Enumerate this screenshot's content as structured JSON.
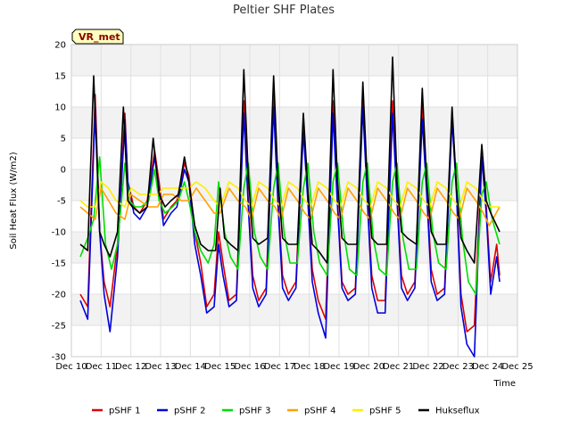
{
  "chart_data": {
    "type": "line",
    "title": "Peltier SHF Plates",
    "xlabel": "Time",
    "ylabel": "Soil Heat Flux (W/m2)",
    "tag": "VR_met",
    "xlim": [
      10,
      25
    ],
    "ylim": [
      -30,
      20
    ],
    "x_ticks": [
      {
        "v": 10,
        "label": "Dec 10"
      },
      {
        "v": 11,
        "label": "Dec 11"
      },
      {
        "v": 12,
        "label": "Dec 12"
      },
      {
        "v": 13,
        "label": "Dec 13"
      },
      {
        "v": 14,
        "label": "Dec 14"
      },
      {
        "v": 15,
        "label": "Dec 15"
      },
      {
        "v": 16,
        "label": "Dec 16"
      },
      {
        "v": 17,
        "label": "Dec 17"
      },
      {
        "v": 18,
        "label": "Dec 18"
      },
      {
        "v": 19,
        "label": "Dec 19"
      },
      {
        "v": 20,
        "label": "Dec 20"
      },
      {
        "v": 21,
        "label": "Dec 21"
      },
      {
        "v": 22,
        "label": "Dec 22"
      },
      {
        "v": 23,
        "label": "Dec 23"
      },
      {
        "v": 24,
        "label": "Dec 24"
      },
      {
        "v": 25,
        "label": "Dec 25"
      }
    ],
    "y_ticks": [
      {
        "v": 20,
        "label": "20"
      },
      {
        "v": 15,
        "label": "15"
      },
      {
        "v": 10,
        "label": "10"
      },
      {
        "v": 5,
        "label": "5"
      },
      {
        "v": 0,
        "label": "0"
      },
      {
        "v": -5,
        "label": "-5"
      },
      {
        "v": -10,
        "label": "-10"
      },
      {
        "v": -15,
        "label": "-15"
      },
      {
        "v": -20,
        "label": "-20"
      },
      {
        "v": -25,
        "label": "-25"
      },
      {
        "v": -30,
        "label": "-30"
      }
    ],
    "grid": true,
    "legend_position": "bottom",
    "series": [
      {
        "name": "pSHF 1",
        "color": "#dd0000",
        "x": [
          10.3,
          10.55,
          10.8,
          10.95,
          11.1,
          11.3,
          11.55,
          11.8,
          11.9,
          12.1,
          12.3,
          12.55,
          12.8,
          12.95,
          13.1,
          13.35,
          13.55,
          13.8,
          13.95,
          14.15,
          14.35,
          14.55,
          14.8,
          14.95,
          15.1,
          15.3,
          15.55,
          15.8,
          15.95,
          16.1,
          16.3,
          16.55,
          16.8,
          16.95,
          17.1,
          17.3,
          17.55,
          17.8,
          17.95,
          18.1,
          18.3,
          18.55,
          18.8,
          18.95,
          19.1,
          19.3,
          19.55,
          19.8,
          19.95,
          20.1,
          20.3,
          20.55,
          20.8,
          20.95,
          21.1,
          21.3,
          21.55,
          21.8,
          21.95,
          22.1,
          22.3,
          22.55,
          22.8,
          22.95,
          23.1,
          23.3,
          23.55,
          23.8,
          23.95,
          24.1,
          24.3,
          24.4
        ],
        "y": [
          -20,
          -22,
          12,
          -10,
          -18,
          -22,
          -12,
          9,
          -2,
          -6,
          -7,
          -5,
          3,
          -2,
          -8,
          -6,
          -5,
          1,
          -1,
          -10,
          -15,
          -22,
          -20,
          -10,
          -15,
          -21,
          -20,
          11,
          -5,
          -17,
          -21,
          -19,
          13,
          -5,
          -17,
          -20,
          -18,
          8,
          -4,
          -16,
          -21,
          -24,
          11,
          -5,
          -18,
          -20,
          -19,
          12,
          -4,
          -17,
          -21,
          -21,
          11,
          -4,
          -17,
          -20,
          -18,
          10,
          -3,
          -16,
          -20,
          -19,
          9,
          -3,
          -20,
          -26,
          -25,
          2,
          -6,
          -18,
          -12,
          -17
        ]
      },
      {
        "name": "pSHF 2",
        "color": "#0000dd",
        "x": [
          10.3,
          10.55,
          10.8,
          10.95,
          11.1,
          11.3,
          11.55,
          11.8,
          11.9,
          12.1,
          12.3,
          12.55,
          12.8,
          12.95,
          13.1,
          13.35,
          13.55,
          13.8,
          13.95,
          14.15,
          14.35,
          14.55,
          14.8,
          14.95,
          15.1,
          15.3,
          15.55,
          15.8,
          15.95,
          16.1,
          16.3,
          16.55,
          16.8,
          16.95,
          17.1,
          17.3,
          17.55,
          17.8,
          17.95,
          18.1,
          18.3,
          18.55,
          18.8,
          18.95,
          19.1,
          19.3,
          19.55,
          19.8,
          19.95,
          20.1,
          20.3,
          20.55,
          20.8,
          20.95,
          21.1,
          21.3,
          21.55,
          21.8,
          21.95,
          22.1,
          22.3,
          22.55,
          22.8,
          22.95,
          23.1,
          23.3,
          23.55,
          23.8,
          23.95,
          24.1,
          24.3,
          24.4
        ],
        "y": [
          -21,
          -24,
          10,
          -10,
          -20,
          -26,
          -14,
          8,
          -2,
          -7,
          -8,
          -6,
          2,
          -3,
          -9,
          -7,
          -6,
          0,
          -2,
          -12,
          -17,
          -23,
          -22,
          -12,
          -17,
          -22,
          -21,
          9,
          -6,
          -19,
          -22,
          -20,
          10,
          -6,
          -19,
          -21,
          -19,
          6,
          -5,
          -18,
          -23,
          -27,
          9,
          -6,
          -19,
          -21,
          -20,
          10,
          -5,
          -19,
          -23,
          -23,
          9,
          -5,
          -19,
          -21,
          -19,
          8,
          -4,
          -18,
          -21,
          -20,
          8,
          -4,
          -22,
          -28,
          -30,
          2,
          -7,
          -20,
          -14,
          -18
        ]
      },
      {
        "name": "pSHF 3",
        "color": "#00dd00",
        "x": [
          10.3,
          10.55,
          10.75,
          10.95,
          11.15,
          11.35,
          11.55,
          11.8,
          11.95,
          12.15,
          12.35,
          12.6,
          12.8,
          12.95,
          13.15,
          13.4,
          13.6,
          13.8,
          13.95,
          14.15,
          14.35,
          14.6,
          14.8,
          14.95,
          15.15,
          15.35,
          15.6,
          15.8,
          15.95,
          16.15,
          16.35,
          16.6,
          16.8,
          16.95,
          17.15,
          17.35,
          17.6,
          17.8,
          17.95,
          18.15,
          18.35,
          18.6,
          18.8,
          18.95,
          19.15,
          19.35,
          19.6,
          19.8,
          19.95,
          20.15,
          20.35,
          20.6,
          20.8,
          20.95,
          21.15,
          21.35,
          21.6,
          21.8,
          21.95,
          22.15,
          22.35,
          22.6,
          22.8,
          22.95,
          23.15,
          23.35,
          23.6,
          23.8,
          23.95,
          24.15,
          24.4
        ],
        "y": [
          -14,
          -11,
          -8,
          2,
          -12,
          -16,
          -12,
          1,
          -5,
          -6,
          -6,
          -5,
          0,
          -5,
          -7,
          -6,
          -5,
          -2,
          -5,
          -10,
          -13,
          -15,
          -12,
          -2,
          -10,
          -14,
          -16,
          -3,
          1,
          -10,
          -14,
          -16,
          -3,
          1,
          -10,
          -15,
          -15,
          -3,
          1,
          -10,
          -15,
          -17,
          -2,
          1,
          -10,
          -16,
          -17,
          -2,
          1,
          -11,
          -16,
          -17,
          -2,
          1,
          -11,
          -16,
          -16,
          -2,
          1,
          -10,
          -15,
          -16,
          -2,
          1,
          -11,
          -18,
          -20,
          -4,
          -2,
          -8,
          -12
        ]
      },
      {
        "name": "pSHF 4",
        "color": "#ffa000",
        "x": [
          10.3,
          10.55,
          10.8,
          11.0,
          11.25,
          11.5,
          11.8,
          12.0,
          12.3,
          12.6,
          12.9,
          13.1,
          13.4,
          13.7,
          13.95,
          14.2,
          14.5,
          14.8,
          15.0,
          15.3,
          15.6,
          15.85,
          16.05,
          16.3,
          16.6,
          16.85,
          17.05,
          17.3,
          17.6,
          17.85,
          18.05,
          18.3,
          18.6,
          18.85,
          19.05,
          19.3,
          19.6,
          19.85,
          20.05,
          20.3,
          20.6,
          20.85,
          21.05,
          21.3,
          21.6,
          21.85,
          22.05,
          22.3,
          22.6,
          22.85,
          23.05,
          23.3,
          23.6,
          23.85,
          24.05,
          24.4
        ],
        "y": [
          -6,
          -7,
          -8,
          -3,
          -5,
          -7,
          -8,
          -4,
          -5,
          -6,
          -6,
          -4,
          -4,
          -5,
          -5,
          -3,
          -5,
          -7,
          -7,
          -3,
          -5,
          -6,
          -8,
          -3,
          -5,
          -6,
          -8,
          -3,
          -5,
          -7,
          -8,
          -3,
          -5,
          -7,
          -8,
          -3,
          -5,
          -7,
          -8,
          -3,
          -5,
          -7,
          -8,
          -3,
          -5,
          -7,
          -8,
          -3,
          -5,
          -7,
          -8,
          -3,
          -5,
          -7,
          -9,
          -6
        ]
      },
      {
        "name": "pSHF 5",
        "color": "#ffee00",
        "x": [
          10.3,
          10.55,
          10.8,
          11.0,
          11.25,
          11.5,
          11.8,
          12.0,
          12.3,
          12.6,
          12.9,
          13.1,
          13.4,
          13.7,
          13.95,
          14.2,
          14.5,
          14.8,
          15.0,
          15.3,
          15.6,
          15.85,
          16.05,
          16.3,
          16.6,
          16.85,
          17.05,
          17.3,
          17.6,
          17.85,
          18.05,
          18.3,
          18.6,
          18.85,
          19.05,
          19.3,
          19.6,
          19.85,
          20.05,
          20.3,
          20.6,
          20.85,
          21.05,
          21.3,
          21.6,
          21.85,
          22.05,
          22.3,
          22.6,
          22.85,
          23.05,
          23.3,
          23.6,
          23.85,
          24.05,
          24.4
        ],
        "y": [
          -5,
          -6,
          -6,
          -2,
          -3,
          -5,
          -6,
          -3,
          -4,
          -4,
          -4,
          -3,
          -3,
          -3,
          -3,
          -2,
          -3,
          -5,
          -6,
          -2,
          -3,
          -5,
          -6,
          -2,
          -3,
          -5,
          -6,
          -2,
          -3,
          -5,
          -6,
          -2,
          -3,
          -5,
          -6,
          -2,
          -3,
          -5,
          -6,
          -2,
          -3,
          -5,
          -6,
          -2,
          -3,
          -5,
          -6,
          -2,
          -3,
          -5,
          -6,
          -2,
          -3,
          -5,
          -6,
          -6
        ]
      },
      {
        "name": "Hukseflux",
        "color": "#000000",
        "x": [
          10.3,
          10.55,
          10.75,
          10.95,
          11.1,
          11.3,
          11.55,
          11.75,
          11.9,
          12.05,
          12.3,
          12.55,
          12.75,
          12.95,
          13.15,
          13.35,
          13.6,
          13.8,
          13.95,
          14.15,
          14.35,
          14.6,
          14.85,
          15.0,
          15.15,
          15.35,
          15.6,
          15.8,
          15.95,
          16.1,
          16.3,
          16.6,
          16.8,
          16.95,
          17.1,
          17.3,
          17.6,
          17.8,
          17.95,
          18.1,
          18.3,
          18.6,
          18.8,
          18.95,
          19.1,
          19.3,
          19.6,
          19.8,
          19.95,
          20.1,
          20.3,
          20.6,
          20.8,
          20.95,
          21.1,
          21.3,
          21.6,
          21.8,
          21.95,
          22.1,
          22.3,
          22.6,
          22.8,
          22.95,
          23.1,
          23.3,
          23.55,
          23.8,
          23.95,
          24.1,
          24.3,
          24.4
        ],
        "y": [
          -12,
          -13,
          15,
          -10,
          -12,
          -14,
          -10,
          10,
          -5,
          -6,
          -7,
          -6,
          5,
          -4,
          -6,
          -5,
          -4,
          2,
          -2,
          -9,
          -12,
          -13,
          -13,
          -3,
          -11,
          -12,
          -13,
          16,
          -1,
          -11,
          -12,
          -11,
          15,
          -2,
          -11,
          -12,
          -12,
          9,
          -3,
          -12,
          -13,
          -15,
          16,
          -2,
          -11,
          -12,
          -12,
          14,
          -2,
          -11,
          -12,
          -12,
          18,
          -2,
          -10,
          -11,
          -12,
          13,
          -2,
          -10,
          -12,
          -12,
          10,
          -3,
          -11,
          -13,
          -15,
          4,
          -5,
          -7,
          -9,
          -10
        ]
      }
    ]
  }
}
